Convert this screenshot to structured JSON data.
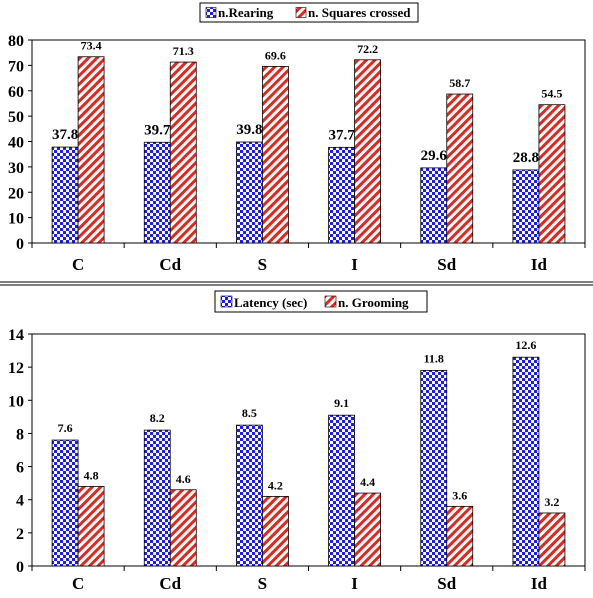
{
  "colors": {
    "checker_blue": "#1a1aff",
    "hatch_red": "#e0281e",
    "background": "#ffffff",
    "axis": "#000000"
  },
  "chart_data": [
    {
      "type": "bar",
      "categories": [
        "C",
        "Cd",
        "S",
        "I",
        "Sd",
        "Id"
      ],
      "series": [
        {
          "name": "n.Rearing",
          "pattern": "checker",
          "values": [
            37.8,
            39.7,
            39.8,
            37.7,
            29.6,
            28.8
          ]
        },
        {
          "name": "n. Squares crossed",
          "pattern": "hatch",
          "values": [
            73.4,
            71.3,
            69.6,
            72.2,
            58.7,
            54.5
          ]
        }
      ],
      "yticks": [
        "0",
        "10",
        "20",
        "30",
        "40",
        "50",
        "60",
        "70",
        "80"
      ],
      "labels": [
        [
          "37.8",
          "39.7",
          "39.8",
          "37.7",
          "29.6",
          "28.8"
        ],
        [
          "73.4",
          "71.3",
          "69.6",
          "72.2",
          "58.7",
          "54.5"
        ]
      ],
      "ylim": [
        0,
        80
      ],
      "grid": false,
      "legend_position": "top-center"
    },
    {
      "type": "bar",
      "categories": [
        "C",
        "Cd",
        "S",
        "I",
        "Sd",
        "Id"
      ],
      "series": [
        {
          "name": "Latency (sec)",
          "pattern": "checker",
          "values": [
            7.6,
            8.2,
            8.5,
            9.1,
            11.8,
            12.6
          ]
        },
        {
          "name": "n. Grooming",
          "pattern": "hatch",
          "values": [
            4.8,
            4.6,
            4.2,
            4.4,
            3.6,
            3.2
          ]
        }
      ],
      "yticks": [
        "0",
        "2",
        "4",
        "6",
        "8",
        "10",
        "12",
        "14"
      ],
      "labels": [
        [
          "7.6",
          "8.2",
          "8.5",
          "9.1",
          "11.8",
          "12.6"
        ],
        [
          "4.8",
          "4.6",
          "4.2",
          "4.4",
          "3.6",
          "3.2"
        ]
      ],
      "ylim": [
        0,
        14
      ],
      "grid": false,
      "legend_position": "top-center"
    }
  ]
}
